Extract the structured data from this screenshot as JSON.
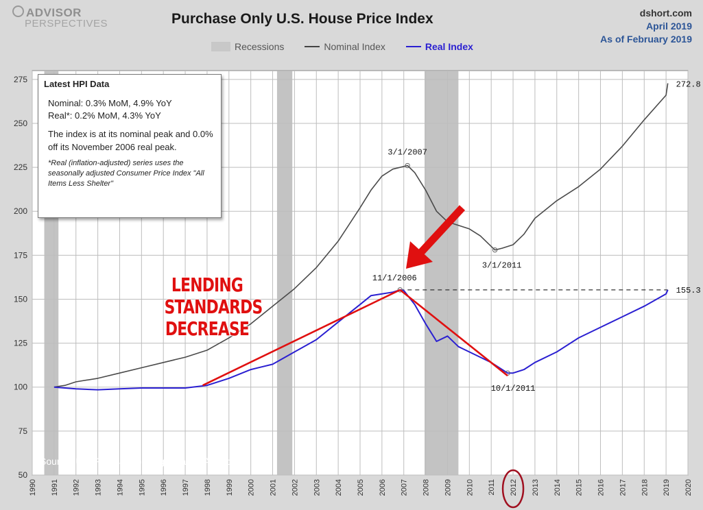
{
  "header": {
    "logo_line1": "ADVISOR",
    "logo_line2": "PERSPECTIVES",
    "title": "Purchase Only U.S. House Price Index",
    "source_site": "dshort.com",
    "date_line1": "April 2019",
    "date_line2": "As of February 2019"
  },
  "legend": {
    "recessions": "Recessions",
    "nominal": "Nominal Index",
    "real": "Real Index"
  },
  "info_box": {
    "heading": "Latest HPI Data",
    "nominal_line": "Nominal:  0.3% MoM, 4.9% YoY",
    "real_line": "Real*:  0.2% MoM, 4.3% YoY",
    "peak_text": "The index is at its nominal peak and 0.0% off its November 2006 real peak.",
    "footnote": "*Real (inflation-adjusted) series uses the seasonally adjusted Consumer Price Index \"All Items Less Shelter\""
  },
  "overlay_text": "LENDING STANDARDS DECREASE",
  "source_note": "Source: US. Federal Housing Finance Agency",
  "colors": {
    "nominal": "#4a4a4a",
    "real": "#2a1fd1",
    "recession": "#b8b8b8",
    "annotation": "#e01010"
  },
  "chart_data": {
    "type": "line",
    "title": "Purchase Only U.S. House Price Index",
    "x_ticks": [
      "1990",
      "1991",
      "1992",
      "1993",
      "1994",
      "1995",
      "1996",
      "1997",
      "1998",
      "1999",
      "2000",
      "2001",
      "2002",
      "2003",
      "2004",
      "2005",
      "2006",
      "2007",
      "2008",
      "2009",
      "2010",
      "2011",
      "2012",
      "2013",
      "2014",
      "2015",
      "2016",
      "2017",
      "2018",
      "2019",
      "2020"
    ],
    "y_ticks": [
      50,
      75,
      100,
      125,
      150,
      175,
      200,
      225,
      250,
      275
    ],
    "xlim": [
      1990,
      2020
    ],
    "ylim": [
      50,
      280
    ],
    "grid": true,
    "legend_position": "top",
    "recessions": [
      [
        1990.55,
        1991.2
      ],
      [
        2001.2,
        2001.9
      ],
      [
        2007.95,
        2009.5
      ]
    ],
    "series": [
      {
        "name": "Nominal Index",
        "x": [
          1991.0,
          1991.5,
          1992.0,
          1993.0,
          1994.0,
          1995.0,
          1996.0,
          1997.0,
          1998.0,
          1999.0,
          2000.0,
          2001.0,
          2002.0,
          2003.0,
          2004.0,
          2005.0,
          2005.5,
          2006.0,
          2006.5,
          2007.17,
          2007.5,
          2008.0,
          2008.5,
          2009.0,
          2009.5,
          2010.0,
          2010.5,
          2011.17,
          2011.5,
          2012.0,
          2012.5,
          2013.0,
          2014.0,
          2015.0,
          2016.0,
          2017.0,
          2018.0,
          2019.0,
          2019.08
        ],
        "values": [
          100,
          101,
          103,
          105,
          108,
          111,
          114,
          117,
          121,
          128,
          136,
          146,
          156,
          168,
          183,
          202,
          212,
          220,
          224,
          226,
          222,
          212,
          200,
          194,
          192,
          190,
          186,
          178,
          179,
          181,
          187,
          196,
          206,
          214,
          224,
          237,
          252,
          266,
          272.8
        ]
      },
      {
        "name": "Real Index",
        "x": [
          1991.0,
          1992.0,
          1993.0,
          1994.0,
          1995.0,
          1996.0,
          1997.0,
          1998.0,
          1999.0,
          2000.0,
          2001.0,
          2002.0,
          2003.0,
          2004.0,
          2005.0,
          2005.5,
          2006.0,
          2006.5,
          2006.83,
          2007.0,
          2007.5,
          2008.0,
          2008.5,
          2009.0,
          2009.5,
          2010.0,
          2010.5,
          2011.0,
          2011.5,
          2011.75,
          2012.0,
          2012.5,
          2013.0,
          2014.0,
          2015.0,
          2016.0,
          2017.0,
          2018.0,
          2019.0,
          2019.08
        ],
        "values": [
          100,
          99,
          98.5,
          99,
          99.5,
          99.5,
          99.5,
          101,
          105,
          110,
          113,
          120,
          127,
          137,
          147,
          152,
          153,
          154,
          155.3,
          155,
          147,
          136,
          126,
          129,
          123,
          120,
          117,
          114,
          110,
          108,
          108,
          110,
          114,
          120,
          128,
          134,
          140,
          146,
          153,
          155.3
        ]
      }
    ],
    "annotations": [
      {
        "label": "3/1/2007",
        "x": 2007.17,
        "y": 226
      },
      {
        "label": "3/1/2011",
        "x": 2011.17,
        "y": 178
      },
      {
        "label": "11/1/2006",
        "x": 2006.83,
        "y": 155.3
      },
      {
        "label": "10/1/2011",
        "x": 2011.75,
        "y": 108
      },
      {
        "label": "272.8",
        "x": 2019.08,
        "y": 272.8
      },
      {
        "label": "155.3",
        "x": 2019.08,
        "y": 155.3
      }
    ]
  }
}
